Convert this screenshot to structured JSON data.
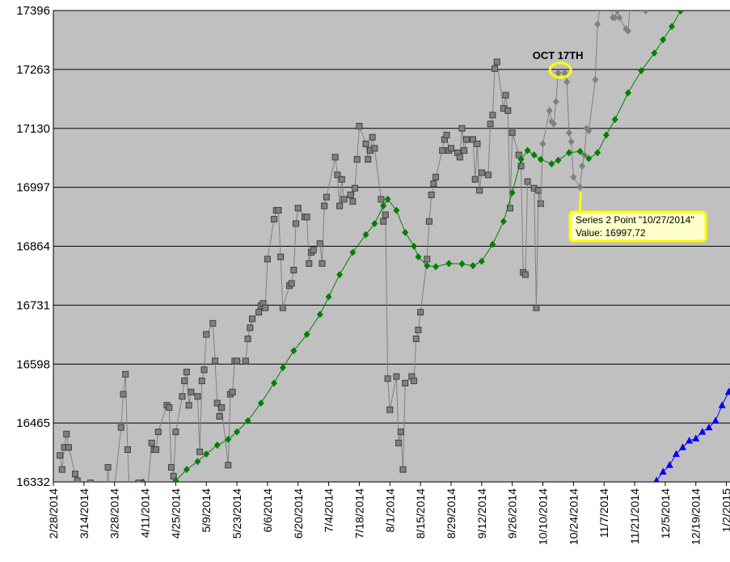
{
  "chart_data": {
    "type": "line",
    "title": "",
    "xlabel": "",
    "ylabel": "",
    "ylim": [
      16332,
      17396
    ],
    "xlim": [
      "2014-02-28",
      "2015-01-04"
    ],
    "grid": "horizontal",
    "y_ticks": [
      "16332",
      "16465",
      "16598",
      "16731",
      "16864",
      "16997",
      "17130",
      "17263",
      "17396"
    ],
    "x_ticks": [
      "2/28/2014",
      "3/14/2014",
      "3/28/2014",
      "4/11/2014",
      "4/25/2014",
      "5/9/2014",
      "5/23/2014",
      "6/6/2014",
      "6/20/2014",
      "7/4/2014",
      "7/18/2014",
      "8/1/2014",
      "8/15/2014",
      "8/29/2014",
      "9/12/2014",
      "9/26/2014",
      "10/10/2014",
      "10/24/2014",
      "11/7/2014",
      "11/21/2014",
      "12/5/2014",
      "12/19/2014",
      "1/2/2015"
    ],
    "series": [
      {
        "color": "#808080",
        "marker": "square",
        "points": [
          [
            "2014-03-03",
            16392
          ],
          [
            "2014-03-04",
            16360
          ],
          [
            "2014-03-05",
            16410
          ],
          [
            "2014-03-06",
            16440
          ],
          [
            "2014-03-07",
            16410
          ],
          [
            "2014-03-10",
            16350
          ],
          [
            "2014-03-11",
            16335
          ],
          [
            "2014-03-12",
            16320
          ],
          [
            "2014-03-13",
            16300
          ],
          [
            "2014-03-14",
            16280
          ],
          [
            "2014-03-17",
            16330
          ],
          [
            "2014-03-18",
            16300
          ],
          [
            "2014-03-19",
            16280
          ],
          [
            "2014-03-20",
            16320
          ],
          [
            "2014-03-21",
            16300
          ],
          [
            "2014-03-24",
            16290
          ],
          [
            "2014-03-25",
            16365
          ],
          [
            "2014-03-26",
            16300
          ],
          [
            "2014-03-27",
            16290
          ],
          [
            "2014-03-28",
            16320
          ],
          [
            "2014-03-31",
            16455
          ],
          [
            "2014-04-01",
            16530
          ],
          [
            "2014-04-02",
            16575
          ],
          [
            "2014-04-03",
            16405
          ],
          [
            "2014-04-04",
            16290
          ],
          [
            "2014-04-07",
            16250
          ],
          [
            "2014-04-08",
            16330
          ],
          [
            "2014-04-09",
            16320
          ],
          [
            "2014-04-10",
            16200
          ],
          [
            "2014-04-11",
            16250
          ],
          [
            "2014-04-14",
            16420
          ],
          [
            "2014-04-15",
            16405
          ],
          [
            "2014-04-16",
            16405
          ],
          [
            "2014-04-17",
            16445
          ],
          [
            "2014-04-21",
            16505
          ],
          [
            "2014-04-22",
            16500
          ],
          [
            "2014-04-23",
            16365
          ],
          [
            "2014-04-24",
            16345
          ],
          [
            "2014-04-25",
            16445
          ],
          [
            "2014-04-28",
            16525
          ],
          [
            "2014-04-29",
            16560
          ],
          [
            "2014-04-30",
            16580
          ],
          [
            "2014-05-01",
            16505
          ],
          [
            "2014-05-02",
            16535
          ],
          [
            "2014-05-05",
            16525
          ],
          [
            "2014-05-06",
            16400
          ],
          [
            "2014-05-07",
            16560
          ],
          [
            "2014-05-08",
            16585
          ],
          [
            "2014-05-09",
            16665
          ],
          [
            "2014-05-12",
            16690
          ],
          [
            "2014-05-13",
            16605
          ],
          [
            "2014-05-14",
            16510
          ],
          [
            "2014-05-15",
            16480
          ],
          [
            "2014-05-16",
            16500
          ],
          [
            "2014-05-19",
            16370
          ],
          [
            "2014-05-20",
            16530
          ],
          [
            "2014-05-21",
            16535
          ],
          [
            "2014-05-22",
            16605
          ],
          [
            "2014-05-23",
            16605
          ],
          [
            "2014-05-27",
            16605
          ],
          [
            "2014-05-28",
            16655
          ],
          [
            "2014-05-29",
            16680
          ],
          [
            "2014-05-30",
            16700
          ],
          [
            "2014-06-02",
            16715
          ],
          [
            "2014-06-03",
            16730
          ],
          [
            "2014-06-04",
            16735
          ],
          [
            "2014-06-05",
            16725
          ],
          [
            "2014-06-06",
            16835
          ],
          [
            "2014-06-09",
            16925
          ],
          [
            "2014-06-10",
            16945
          ],
          [
            "2014-06-11",
            16945
          ],
          [
            "2014-06-12",
            16840
          ],
          [
            "2014-06-13",
            16725
          ],
          [
            "2014-06-16",
            16775
          ],
          [
            "2014-06-17",
            16780
          ],
          [
            "2014-06-18",
            16810
          ],
          [
            "2014-06-19",
            16915
          ],
          [
            "2014-06-20",
            16950
          ],
          [
            "2014-06-23",
            16930
          ],
          [
            "2014-06-24",
            16930
          ],
          [
            "2014-06-25",
            16825
          ],
          [
            "2014-06-26",
            16850
          ],
          [
            "2014-06-27",
            16855
          ],
          [
            "2014-06-30",
            16870
          ],
          [
            "2014-07-01",
            16825
          ],
          [
            "2014-07-02",
            16955
          ],
          [
            "2014-07-03",
            16975
          ],
          [
            "2014-07-07",
            17065
          ],
          [
            "2014-07-08",
            17025
          ],
          [
            "2014-07-09",
            16955
          ],
          [
            "2014-07-10",
            17015
          ],
          [
            "2014-07-11",
            16970
          ],
          [
            "2014-07-14",
            16980
          ],
          [
            "2014-07-15",
            16965
          ],
          [
            "2014-07-16",
            16995
          ],
          [
            "2014-07-17",
            17060
          ],
          [
            "2014-07-18",
            17135
          ],
          [
            "2014-07-21",
            17095
          ],
          [
            "2014-07-22",
            17060
          ],
          [
            "2014-07-23",
            17080
          ],
          [
            "2014-07-24",
            17110
          ],
          [
            "2014-07-25",
            17085
          ],
          [
            "2014-07-28",
            16970
          ],
          [
            "2014-07-29",
            16920
          ],
          [
            "2014-07-30",
            16935
          ],
          [
            "2014-07-31",
            16565
          ],
          [
            "2014-08-01",
            16495
          ],
          [
            "2014-08-04",
            16570
          ],
          [
            "2014-08-05",
            16420
          ],
          [
            "2014-08-06",
            16445
          ],
          [
            "2014-08-07",
            16360
          ],
          [
            "2014-08-08",
            16555
          ],
          [
            "2014-08-11",
            16570
          ],
          [
            "2014-08-12",
            16560
          ],
          [
            "2014-08-13",
            16655
          ],
          [
            "2014-08-14",
            16675
          ],
          [
            "2014-08-15",
            16715
          ],
          [
            "2014-08-18",
            16835
          ],
          [
            "2014-08-19",
            16920
          ],
          [
            "2014-08-20",
            16980
          ],
          [
            "2014-08-21",
            17005
          ],
          [
            "2014-08-22",
            17020
          ],
          [
            "2014-08-25",
            17080
          ],
          [
            "2014-08-26",
            17105
          ],
          [
            "2014-08-27",
            17115
          ],
          [
            "2014-08-28",
            17080
          ],
          [
            "2014-08-29",
            17085
          ],
          [
            "2014-09-01",
            17075
          ],
          [
            "2014-09-02",
            17065
          ],
          [
            "2014-09-03",
            17130
          ],
          [
            "2014-09-04",
            17080
          ],
          [
            "2014-09-05",
            17105
          ],
          [
            "2014-09-08",
            17105
          ],
          [
            "2014-09-09",
            17015
          ],
          [
            "2014-09-10",
            17095
          ],
          [
            "2014-09-11",
            16990
          ],
          [
            "2014-09-12",
            17030
          ],
          [
            "2014-09-15",
            17025
          ],
          [
            "2014-09-16",
            17140
          ],
          [
            "2014-09-17",
            17160
          ],
          [
            "2014-09-18",
            17265
          ],
          [
            "2014-09-19",
            17280
          ],
          [
            "2014-09-22",
            17175
          ],
          [
            "2014-09-23",
            17205
          ],
          [
            "2014-09-24",
            17170
          ],
          [
            "2014-09-25",
            16950
          ],
          [
            "2014-09-26",
            17120
          ],
          [
            "2014-09-29",
            17070
          ],
          [
            "2014-09-30",
            17045
          ],
          [
            "2014-10-01",
            16805
          ],
          [
            "2014-10-02",
            16800
          ],
          [
            "2014-10-03",
            17010
          ],
          [
            "2014-10-06",
            16995
          ],
          [
            "2014-10-07",
            16725
          ],
          [
            "2014-10-08",
            16990
          ],
          [
            "2014-10-09",
            16960
          ]
        ]
      },
      {
        "color": "#808080",
        "marker": "diamond",
        "points": [
          [
            "2014-10-09",
            16960
          ],
          [
            "2014-10-10",
            17095
          ],
          [
            "2014-10-13",
            17170
          ],
          [
            "2014-10-14",
            17145
          ],
          [
            "2014-10-15",
            17140
          ],
          [
            "2014-10-16",
            17190
          ],
          [
            "2014-10-17",
            17255
          ],
          [
            "2014-10-20",
            17255
          ],
          [
            "2014-10-21",
            17235
          ],
          [
            "2014-10-22",
            17120
          ],
          [
            "2014-10-23",
            17100
          ],
          [
            "2014-10-24",
            17020
          ],
          [
            "2014-10-27",
            16997.72
          ],
          [
            "2014-10-28",
            17045
          ],
          [
            "2014-10-29",
            17070
          ],
          [
            "2014-10-30",
            17130
          ],
          [
            "2014-10-31",
            17125
          ],
          [
            "2014-11-03",
            17240
          ],
          [
            "2014-11-04",
            17365
          ],
          [
            "2014-11-05",
            17400
          ],
          [
            "2014-11-06",
            17430
          ],
          [
            "2014-11-07",
            17400
          ],
          [
            "2014-11-10",
            17420
          ],
          [
            "2014-11-11",
            17380
          ],
          [
            "2014-11-12",
            17380
          ],
          [
            "2014-11-13",
            17395
          ],
          [
            "2014-11-14",
            17380
          ],
          [
            "2014-11-17",
            17355
          ],
          [
            "2014-11-18",
            17350
          ],
          [
            "2014-11-19",
            17410
          ],
          [
            "2014-11-20",
            17400
          ],
          [
            "2014-11-21",
            17420
          ],
          [
            "2014-11-24",
            17400
          ],
          [
            "2014-11-25",
            17410
          ],
          [
            "2014-11-26",
            17395
          ],
          [
            "2014-11-28",
            17400
          ],
          [
            "2014-12-01",
            17420
          ]
        ]
      },
      {
        "color": "#008000",
        "marker": "diamond",
        "points": [
          [
            "2014-04-07",
            16322
          ],
          [
            "2014-04-10",
            16332
          ],
          [
            "2014-04-14",
            16322
          ],
          [
            "2014-04-21",
            16322
          ],
          [
            "2014-04-25",
            16335
          ],
          [
            "2014-04-30",
            16360
          ],
          [
            "2014-05-05",
            16378
          ],
          [
            "2014-05-09",
            16395
          ],
          [
            "2014-05-14",
            16415
          ],
          [
            "2014-05-19",
            16428
          ],
          [
            "2014-05-23",
            16445
          ],
          [
            "2014-05-28",
            16470
          ],
          [
            "2014-06-03",
            16510
          ],
          [
            "2014-06-09",
            16555
          ],
          [
            "2014-06-13",
            16590
          ],
          [
            "2014-06-18",
            16628
          ],
          [
            "2014-06-24",
            16665
          ],
          [
            "2014-06-30",
            16710
          ],
          [
            "2014-07-04",
            16750
          ],
          [
            "2014-07-09",
            16800
          ],
          [
            "2014-07-15",
            16850
          ],
          [
            "2014-07-21",
            16890
          ],
          [
            "2014-07-25",
            16915
          ],
          [
            "2014-07-29",
            16955
          ],
          [
            "2014-07-31",
            16970
          ],
          [
            "2014-08-04",
            16945
          ],
          [
            "2014-08-08",
            16895
          ],
          [
            "2014-08-12",
            16864
          ],
          [
            "2014-08-14",
            16840
          ],
          [
            "2014-08-18",
            16820
          ],
          [
            "2014-08-22",
            16818
          ],
          [
            "2014-08-28",
            16825
          ],
          [
            "2014-09-03",
            16824
          ],
          [
            "2014-09-08",
            16820
          ],
          [
            "2014-09-12",
            16830
          ],
          [
            "2014-09-17",
            16868
          ],
          [
            "2014-09-22",
            16920
          ],
          [
            "2014-09-26",
            16985
          ],
          [
            "2014-09-30",
            17060
          ],
          [
            "2014-10-03",
            17080
          ],
          [
            "2014-10-06",
            17070
          ],
          [
            "2014-10-09",
            17060
          ],
          [
            "2014-10-14",
            17050
          ],
          [
            "2014-10-17",
            17058
          ],
          [
            "2014-10-22",
            17075
          ],
          [
            "2014-10-27",
            17078
          ],
          [
            "2014-10-31",
            17062
          ],
          [
            "2014-11-04",
            17075
          ],
          [
            "2014-11-08",
            17115
          ],
          [
            "2014-11-12",
            17150
          ],
          [
            "2014-11-18",
            17210
          ],
          [
            "2014-11-24",
            17260
          ],
          [
            "2014-11-30",
            17300
          ],
          [
            "2014-12-04",
            17330
          ],
          [
            "2014-12-08",
            17360
          ],
          [
            "2014-12-12",
            17395
          ],
          [
            "2014-12-14",
            17410
          ]
        ]
      },
      {
        "color": "#0000ff",
        "marker": "triangle",
        "points": [
          [
            "2014-11-28",
            16300
          ],
          [
            "2014-12-01",
            16335
          ],
          [
            "2014-12-04",
            16355
          ],
          [
            "2014-12-07",
            16370
          ],
          [
            "2014-12-10",
            16395
          ],
          [
            "2014-12-13",
            16410
          ],
          [
            "2014-12-16",
            16425
          ],
          [
            "2014-12-19",
            16430
          ],
          [
            "2014-12-22",
            16445
          ],
          [
            "2014-12-25",
            16455
          ],
          [
            "2014-12-28",
            16470
          ],
          [
            "2014-12-31",
            16505
          ],
          [
            "2015-01-03",
            16535
          ],
          [
            "2015-01-05",
            16560
          ]
        ]
      }
    ],
    "annotations": [
      {
        "text": "OCT 17TH",
        "x": "2014-10-18",
        "y": 17263,
        "shape": "ellipse",
        "color": "#ffff00"
      }
    ],
    "tooltip": {
      "line1": "Series 2 Point \"10/27/2014\"",
      "line2": "Value: 16997.72",
      "x": "2014-10-27",
      "y": 16997.72,
      "background": "#ffffcc",
      "border": "#ffff00"
    },
    "colors": {
      "plot_background": "#c0c0c0",
      "gridline": "#000000"
    }
  }
}
